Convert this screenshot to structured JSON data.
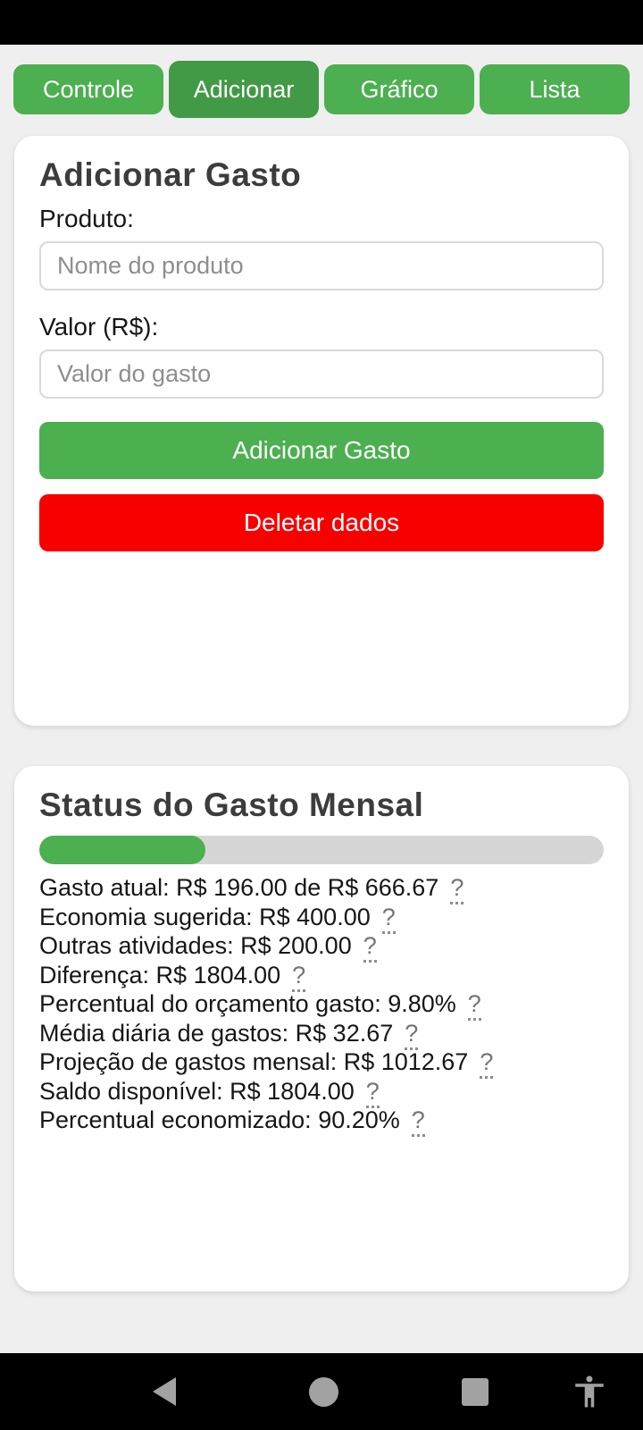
{
  "tabs": [
    {
      "label": "Controle",
      "active": false
    },
    {
      "label": "Adicionar",
      "active": true
    },
    {
      "label": "Gráfico",
      "active": false
    },
    {
      "label": "Lista",
      "active": false
    }
  ],
  "add_card": {
    "title": "Adicionar Gasto",
    "product_label": "Produto:",
    "product_placeholder": "Nome do produto",
    "product_value": "",
    "value_label": "Valor (R$):",
    "value_placeholder": "Valor do gasto",
    "value_value": "",
    "add_button_label": "Adicionar Gasto",
    "delete_button_label": "Deletar dados"
  },
  "status_card": {
    "title": "Status do Gasto Mensal",
    "progress_percent": 29.4,
    "stats": [
      {
        "text": "Gasto atual: R$ 196.00 de R$ 666.67",
        "help": "?"
      },
      {
        "text": "Economia sugerida: R$ 400.00",
        "help": "?"
      },
      {
        "text": "Outras atividades: R$ 200.00",
        "help": "?"
      },
      {
        "text": "Diferença: R$ 1804.00",
        "help": "?"
      },
      {
        "text": "Percentual do orçamento gasto: 9.80%",
        "help": "?"
      },
      {
        "text": "Média diária de gastos: R$ 32.67",
        "help": "?"
      },
      {
        "text": "Projeção de gastos mensal: R$ 1012.67",
        "help": "?"
      },
      {
        "text": "Saldo disponível: R$ 1804.00",
        "help": "?"
      },
      {
        "text": "Percentual economizado: 90.20%",
        "help": "?"
      }
    ]
  },
  "nav_bar": {
    "back_icon": "back-icon",
    "home_icon": "home-icon",
    "recents_icon": "recents-icon",
    "accessibility_icon": "accessibility-icon"
  },
  "colors": {
    "accent_green": "#4CAF50",
    "active_tab_green": "#429A46",
    "delete_red": "#F90000",
    "page_background": "#EFEFEF",
    "progress_track": "#D6D6D6",
    "nav_icon_gray": "#A2A2A2"
  }
}
